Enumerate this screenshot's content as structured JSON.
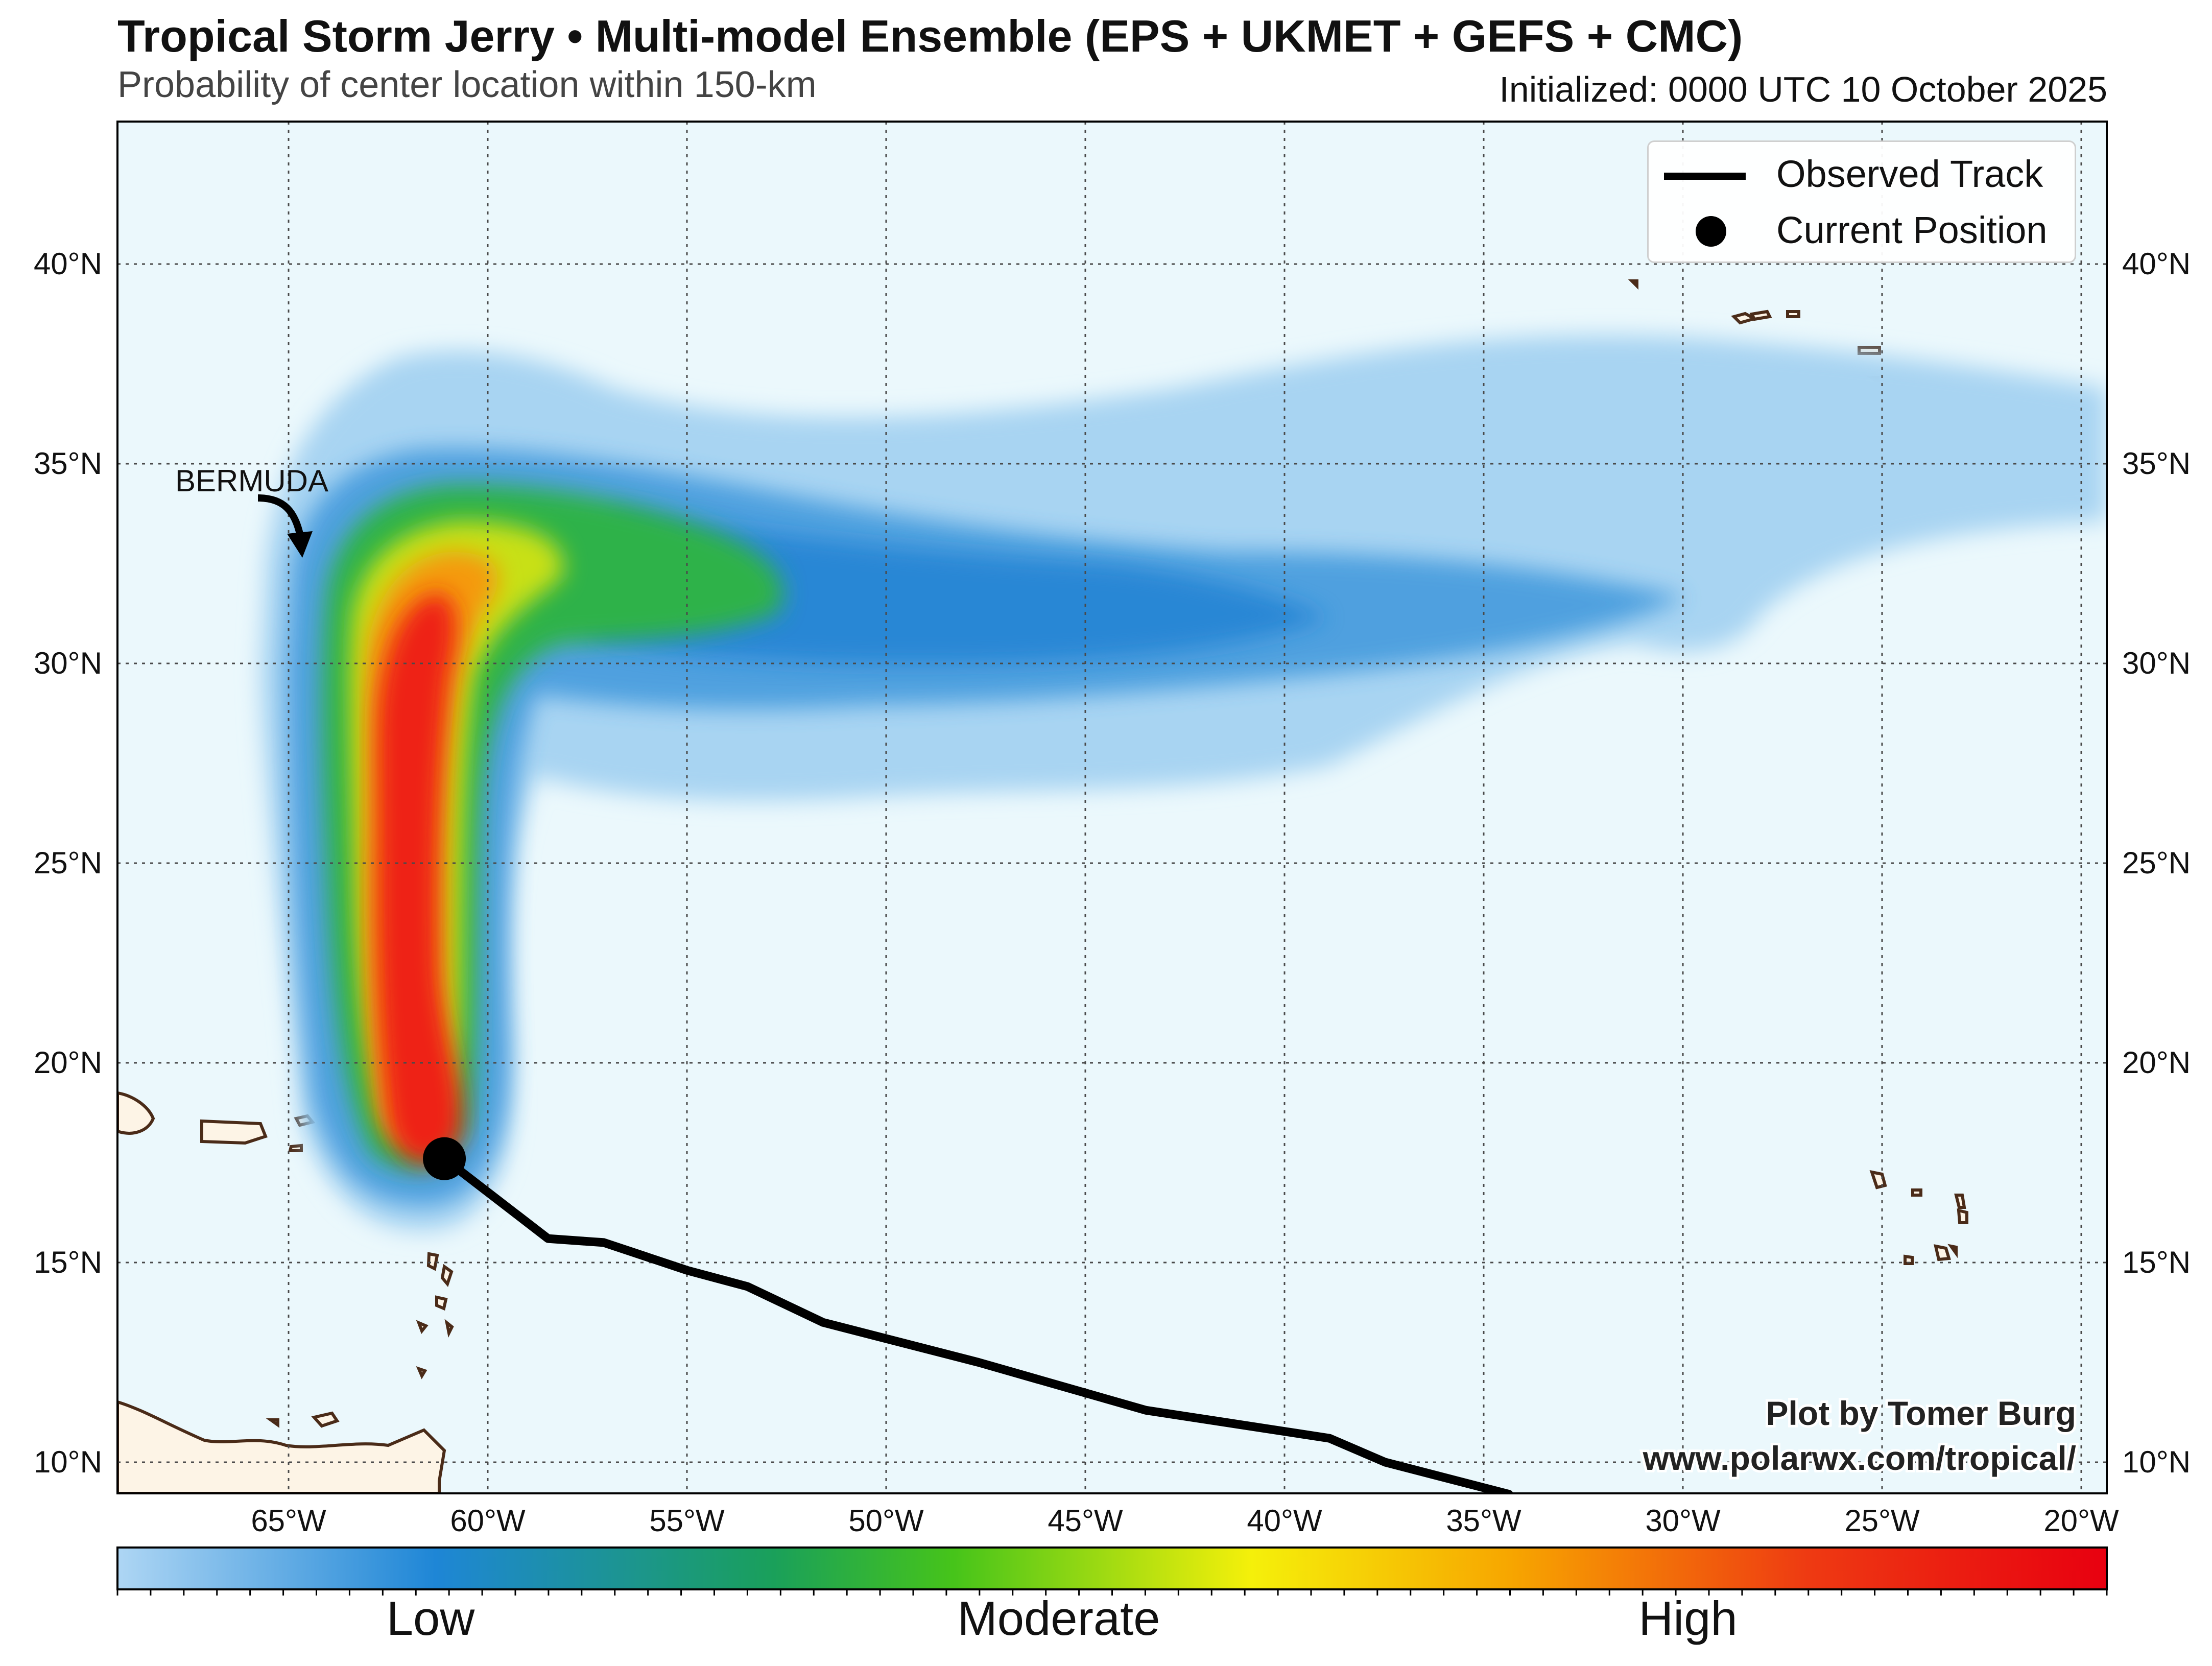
{
  "header": {
    "title": "Tropical Storm Jerry • Multi-model Ensemble (EPS + UKMET + GEFS + CMC)",
    "subtitle": "Probability of center location within 150-km",
    "initialized": "Initialized: 0000 UTC 10 October 2025"
  },
  "map": {
    "lon_labels": [
      "65°W",
      "60°W",
      "55°W",
      "50°W",
      "45°W",
      "40°W",
      "35°W",
      "30°W",
      "25°W",
      "20°W"
    ],
    "lat_labels": [
      "10°N",
      "15°N",
      "20°N",
      "25°N",
      "30°N",
      "35°N",
      "40°N"
    ],
    "place_label": "BERMUDA",
    "credit_line1": "Plot by Tomer Burg",
    "credit_line2": "www.polarwx.com/tropical/",
    "observed_track": [
      [
        -61.1,
        17.6
      ],
      [
        -58.5,
        15.6
      ],
      [
        -57.1,
        15.5
      ],
      [
        -55,
        14.8
      ],
      [
        -53.5,
        14.4
      ],
      [
        -51.6,
        13.5
      ],
      [
        -47.7,
        12.5
      ],
      [
        -43.5,
        11.3
      ],
      [
        -38.9,
        10.6
      ],
      [
        -37.5,
        10.0
      ],
      [
        -34.4,
        9.2
      ]
    ],
    "current_position": [
      -61.1,
      17.6
    ],
    "colors": {
      "ocean": "#ebf8fc",
      "land": "#fdf4e6",
      "coast": "#4a2b18",
      "track": "#000000"
    }
  },
  "legend": {
    "observed_track": "Observed Track",
    "current_position": "Current Position"
  },
  "colorbar": {
    "low": "Low",
    "moderate": "Moderate",
    "high": "High",
    "colors": [
      "#aed6f4",
      "#1e86d6",
      "#1aa05a",
      "#46c41a",
      "#f5f00a",
      "#f7a600",
      "#ee3a12",
      "#e80010"
    ]
  }
}
